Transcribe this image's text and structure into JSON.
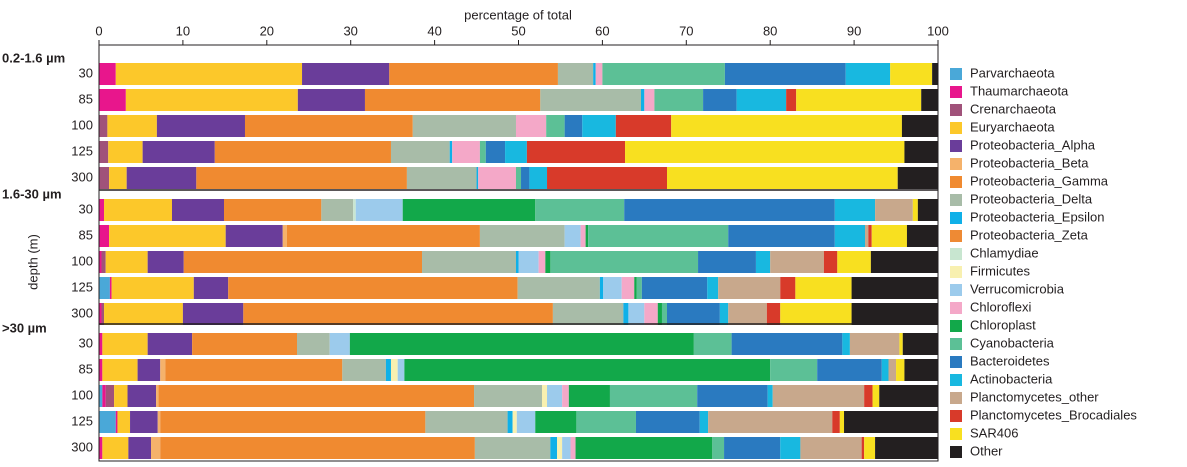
{
  "chart_data": {
    "type": "bar",
    "orientation": "horizontal",
    "stacked": true,
    "x_label": "percentage of total",
    "y_label": "depth (m)",
    "xlim": [
      0,
      100
    ],
    "xticks": [
      0,
      10,
      20,
      30,
      40,
      50,
      60,
      70,
      80,
      90,
      100
    ],
    "groups": [
      {
        "label": "0.2-1.6 µm",
        "categories": [
          "30",
          "85",
          "100",
          "125",
          "300"
        ]
      },
      {
        "label": "1.6-30 µm",
        "categories": [
          "30",
          "85",
          "100",
          "125",
          "300"
        ]
      },
      {
        "label": ">30 µm",
        "categories": [
          "30",
          "85",
          "100",
          "125",
          "300"
        ]
      }
    ],
    "series": [
      {
        "name": "Parvarchaeota",
        "color": "#4aa8d8",
        "values": [
          0,
          0,
          0,
          0,
          0,
          0,
          0,
          0,
          1.3,
          0,
          0,
          0,
          0.4,
          2,
          0
        ]
      },
      {
        "name": "Thaumarchaeota",
        "color": "#e8168c",
        "values": [
          2,
          3.2,
          0,
          0,
          0,
          0.6,
          1.2,
          0.3,
          0.2,
          0.3,
          0.4,
          0.4,
          0.4,
          0.2,
          0.4
        ]
      },
      {
        "name": "Crenarchaeota",
        "color": "#a0527a",
        "values": [
          0,
          0,
          1,
          1.1,
          1.2,
          0,
          0,
          0.5,
          0,
          0.3,
          0,
          0,
          1,
          0,
          0
        ]
      },
      {
        "name": "Euryarchaeota",
        "color": "#fcc82a",
        "values": [
          22.2,
          20.5,
          5.9,
          4.1,
          2.1,
          8.1,
          13.9,
          5,
          9.8,
          9.4,
          5.4,
          4.2,
          1.6,
          1.5,
          3.1
        ]
      },
      {
        "name": "Proteobacteria_Alpha",
        "color": "#6a3d9a",
        "values": [
          10.4,
          8,
          10.5,
          8.6,
          8.3,
          6.2,
          6.8,
          4.3,
          4.1,
          7.2,
          5.3,
          2.7,
          3.4,
          3.3,
          2.7
        ]
      },
      {
        "name": "Proteobacteria_Beta",
        "color": "#f5b26b",
        "values": [
          0,
          0,
          0,
          0,
          0,
          0,
          0.5,
          0,
          0,
          0,
          0,
          0.6,
          0.3,
          0.3,
          1.1
        ]
      },
      {
        "name": "Proteobacteria_Gamma",
        "color": "#f08a30",
        "values": [
          20.1,
          20.9,
          20,
          21,
          25.1,
          11.6,
          23,
          28.4,
          34.5,
          36.9,
          12.5,
          21.1,
          37.6,
          31.6,
          37.5
        ]
      },
      {
        "name": "Proteobacteria_Delta",
        "color": "#a8bca8",
        "values": [
          4.2,
          12,
          12.3,
          7,
          8.3,
          3.8,
          10.1,
          11.2,
          9.8,
          8.4,
          3.9,
          5.2,
          8.1,
          9.8,
          9
        ]
      },
      {
        "name": "Proteobacteria_Epsilon",
        "color": "#0fb0e8",
        "values": [
          0.3,
          0.4,
          0,
          0.3,
          0.2,
          0,
          0,
          0.3,
          0.4,
          0.6,
          0,
          0.6,
          0,
          0.6,
          0.8
        ]
      },
      {
        "name": "Proteobacteria_Zeta",
        "color": "#ee8a34",
        "values": [
          0,
          0,
          0,
          0,
          0,
          0,
          0,
          0,
          0,
          0,
          0,
          0,
          0,
          0,
          0
        ]
      },
      {
        "name": "Chlamydiae",
        "color": "#c8e6d0",
        "values": [
          0,
          0,
          0,
          0,
          0,
          0.3,
          0,
          0,
          0,
          0,
          0,
          0,
          0,
          0,
          0
        ]
      },
      {
        "name": "Firmicutes",
        "color": "#f8f0b0",
        "values": [
          0,
          0,
          0,
          0,
          0,
          0,
          0,
          0,
          0,
          0,
          0,
          0.8,
          0.6,
          0.5,
          0.6
        ]
      },
      {
        "name": "Verrucomicrobia",
        "color": "#9ccbec",
        "values": [
          0,
          0,
          0,
          0,
          0,
          5.6,
          1.9,
          2.4,
          2.2,
          1.9,
          2.4,
          0.8,
          1.8,
          2.2,
          1
        ]
      },
      {
        "name": "Chloroflexi",
        "color": "#f4a8c8",
        "values": [
          0.8,
          1.2,
          3.6,
          3.3,
          4.5,
          0,
          0.6,
          0.8,
          1.5,
          1.6,
          0,
          0,
          0.8,
          0,
          0.6
        ]
      },
      {
        "name": "Chloroplast",
        "color": "#12a84a",
        "values": [
          0,
          0,
          0,
          0,
          0,
          15.8,
          0.3,
          0.6,
          0.3,
          0.5,
          41,
          43.6,
          4.9,
          4.9,
          16.3
        ]
      },
      {
        "name": "Cyanobacteria",
        "color": "#5cc096",
        "values": [
          14.6,
          5.8,
          2.2,
          0.7,
          0.6,
          10.6,
          16.7,
          17.6,
          0.6,
          0.6,
          4.5,
          5.6,
          10.4,
          7.1,
          1.4
        ]
      },
      {
        "name": "Bacteroidetes",
        "color": "#2a7ac0",
        "values": [
          14.4,
          4,
          2.1,
          2.3,
          1,
          25.1,
          12.7,
          6.9,
          7.8,
          6.3,
          13.2,
          7.7,
          8.4,
          7.6,
          6.7
        ]
      },
      {
        "name": "Actinobacteria",
        "color": "#18b8e0",
        "values": [
          5.3,
          5.9,
          4,
          2.6,
          2.1,
          4.8,
          3.6,
          1.7,
          1.3,
          1,
          0.9,
          0.8,
          0.6,
          1,
          2.4
        ]
      },
      {
        "name": "Planctomycetes_other",
        "color": "#c8a88c",
        "values": [
          0,
          0,
          0,
          0,
          0,
          4.5,
          0.4,
          6.4,
          7.4,
          4.6,
          5.9,
          0.9,
          10.9,
          14.8,
          7.3
        ]
      },
      {
        "name": "Planctomycetes_Brocadiales",
        "color": "#d83a2a",
        "values": [
          0,
          1.2,
          6.6,
          11.7,
          14.3,
          0,
          0.4,
          1.6,
          1.8,
          1.6,
          0,
          0,
          1,
          0.9,
          0.3
        ]
      },
      {
        "name": "SAR406",
        "color": "#f8e020",
        "values": [
          5,
          14.9,
          27.5,
          33.3,
          27.5,
          0.6,
          4.2,
          4,
          6.7,
          8.5,
          0.4,
          1,
          0.8,
          0.5,
          1.3
        ]
      },
      {
        "name": "Other",
        "color": "#231f20",
        "values": [
          0.7,
          2,
          4.3,
          4,
          4.8,
          2.4,
          3.7,
          8,
          10.3,
          10.3,
          4.2,
          4,
          7,
          11.2,
          7.5
        ]
      }
    ]
  }
}
